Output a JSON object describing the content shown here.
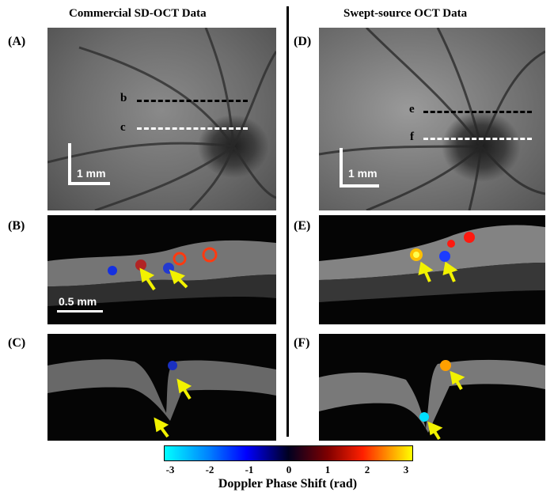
{
  "headers": {
    "left": "Commercial SD-OCT Data",
    "right": "Swept-source OCT Data"
  },
  "panel_labels": {
    "A": "(A)",
    "B": "(B)",
    "C": "(C)",
    "D": "(D)",
    "E": "(E)",
    "F": "(F)"
  },
  "scan_lines": {
    "b": "b",
    "c": "c",
    "e": "e",
    "f": "f"
  },
  "scale_bars": {
    "fundus_left": "1 mm",
    "fundus_right": "1 mm",
    "bscan": "0.5 mm"
  },
  "colorbar": {
    "ticks": [
      "-3",
      "-2",
      "-1",
      "0",
      "1",
      "2",
      "3"
    ],
    "title": "Doppler Phase Shift (rad)",
    "colors": [
      "#00ffff",
      "#0000ff",
      "#000020",
      "#800000",
      "#ff2000",
      "#ffff00"
    ]
  },
  "accent_colors": {
    "arrow": "#f2f200",
    "scan_line_b": "#000000",
    "scan_line_c": "#ffffff"
  }
}
